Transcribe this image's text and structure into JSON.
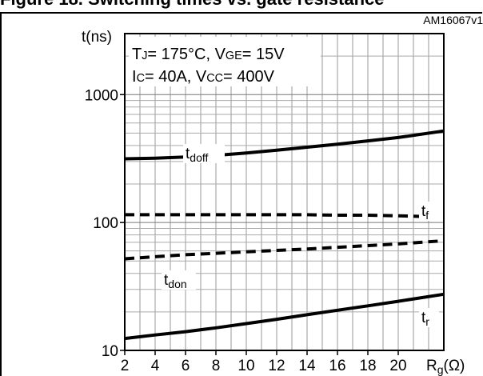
{
  "header": {
    "title": "Figure 18. Switching times vs. gate resistance"
  },
  "chart_data": {
    "type": "line",
    "figure_id": "AM16067v1",
    "ylabel": "t(ns)",
    "xlabel": "Rg(Ω)",
    "xlabel_main": "R",
    "xlabel_sub": "g",
    "xlabel_unit": "(Ω)",
    "x_ticks": [
      2,
      4,
      6,
      8,
      10,
      12,
      14,
      16,
      18,
      20
    ],
    "xlim": [
      2,
      23
    ],
    "y_ticks": [
      10,
      100,
      1000
    ],
    "ylim": [
      10,
      3000
    ],
    "yscale": "log",
    "grid": true,
    "conditions": [
      {
        "text": [
          [
            "T",
            "",
            "normal"
          ],
          [
            "J",
            "",
            "sub"
          ],
          [
            "= 175°C, V",
            "",
            "normal"
          ],
          [
            "GE",
            "",
            "sub"
          ],
          [
            "= 15V",
            "",
            "normal"
          ]
        ]
      },
      {
        "text": [
          [
            "I",
            "",
            "normal"
          ],
          [
            "C",
            "",
            "sub"
          ],
          [
            "= 40A, V",
            "",
            "normal"
          ],
          [
            "CC",
            "",
            "sub"
          ],
          [
            "= 400V",
            "",
            "normal"
          ]
        ]
      }
    ],
    "conditions_plain": [
      "TJ= 175°C, VGE= 15V",
      "IC= 40A, VCC= 400V"
    ],
    "series": [
      {
        "name": "tdoff",
        "label_main": "t",
        "label_sub": "doff",
        "style": "solid",
        "x": [
          2,
          4,
          6,
          8,
          10,
          12,
          14,
          16,
          18,
          20,
          23
        ],
        "y": [
          315,
          318,
          325,
          335,
          350,
          368,
          388,
          410,
          435,
          462,
          520
        ]
      },
      {
        "name": "tf",
        "label_main": "t",
        "label_sub": "f",
        "style": "dashed",
        "x": [
          2,
          4,
          6,
          8,
          10,
          12,
          14,
          16,
          18,
          20,
          23
        ],
        "y": [
          115,
          115,
          115,
          115,
          115,
          115,
          115,
          114,
          114,
          113,
          110
        ]
      },
      {
        "name": "tdon",
        "label_main": "t",
        "label_sub": "don",
        "style": "dashed",
        "x": [
          2,
          4,
          6,
          8,
          10,
          12,
          14,
          16,
          18,
          20,
          23
        ],
        "y": [
          52,
          54,
          56,
          57.5,
          59,
          60.5,
          62,
          64,
          66,
          68,
          72
        ]
      },
      {
        "name": "tr",
        "label_main": "t",
        "label_sub": "r",
        "style": "solid",
        "x": [
          2,
          4,
          6,
          8,
          10,
          12,
          14,
          16,
          18,
          20,
          23
        ],
        "y": [
          12.4,
          13.2,
          14.0,
          15.0,
          16.2,
          17.5,
          19.0,
          20.6,
          22.3,
          24.2,
          27.5
        ]
      }
    ]
  }
}
